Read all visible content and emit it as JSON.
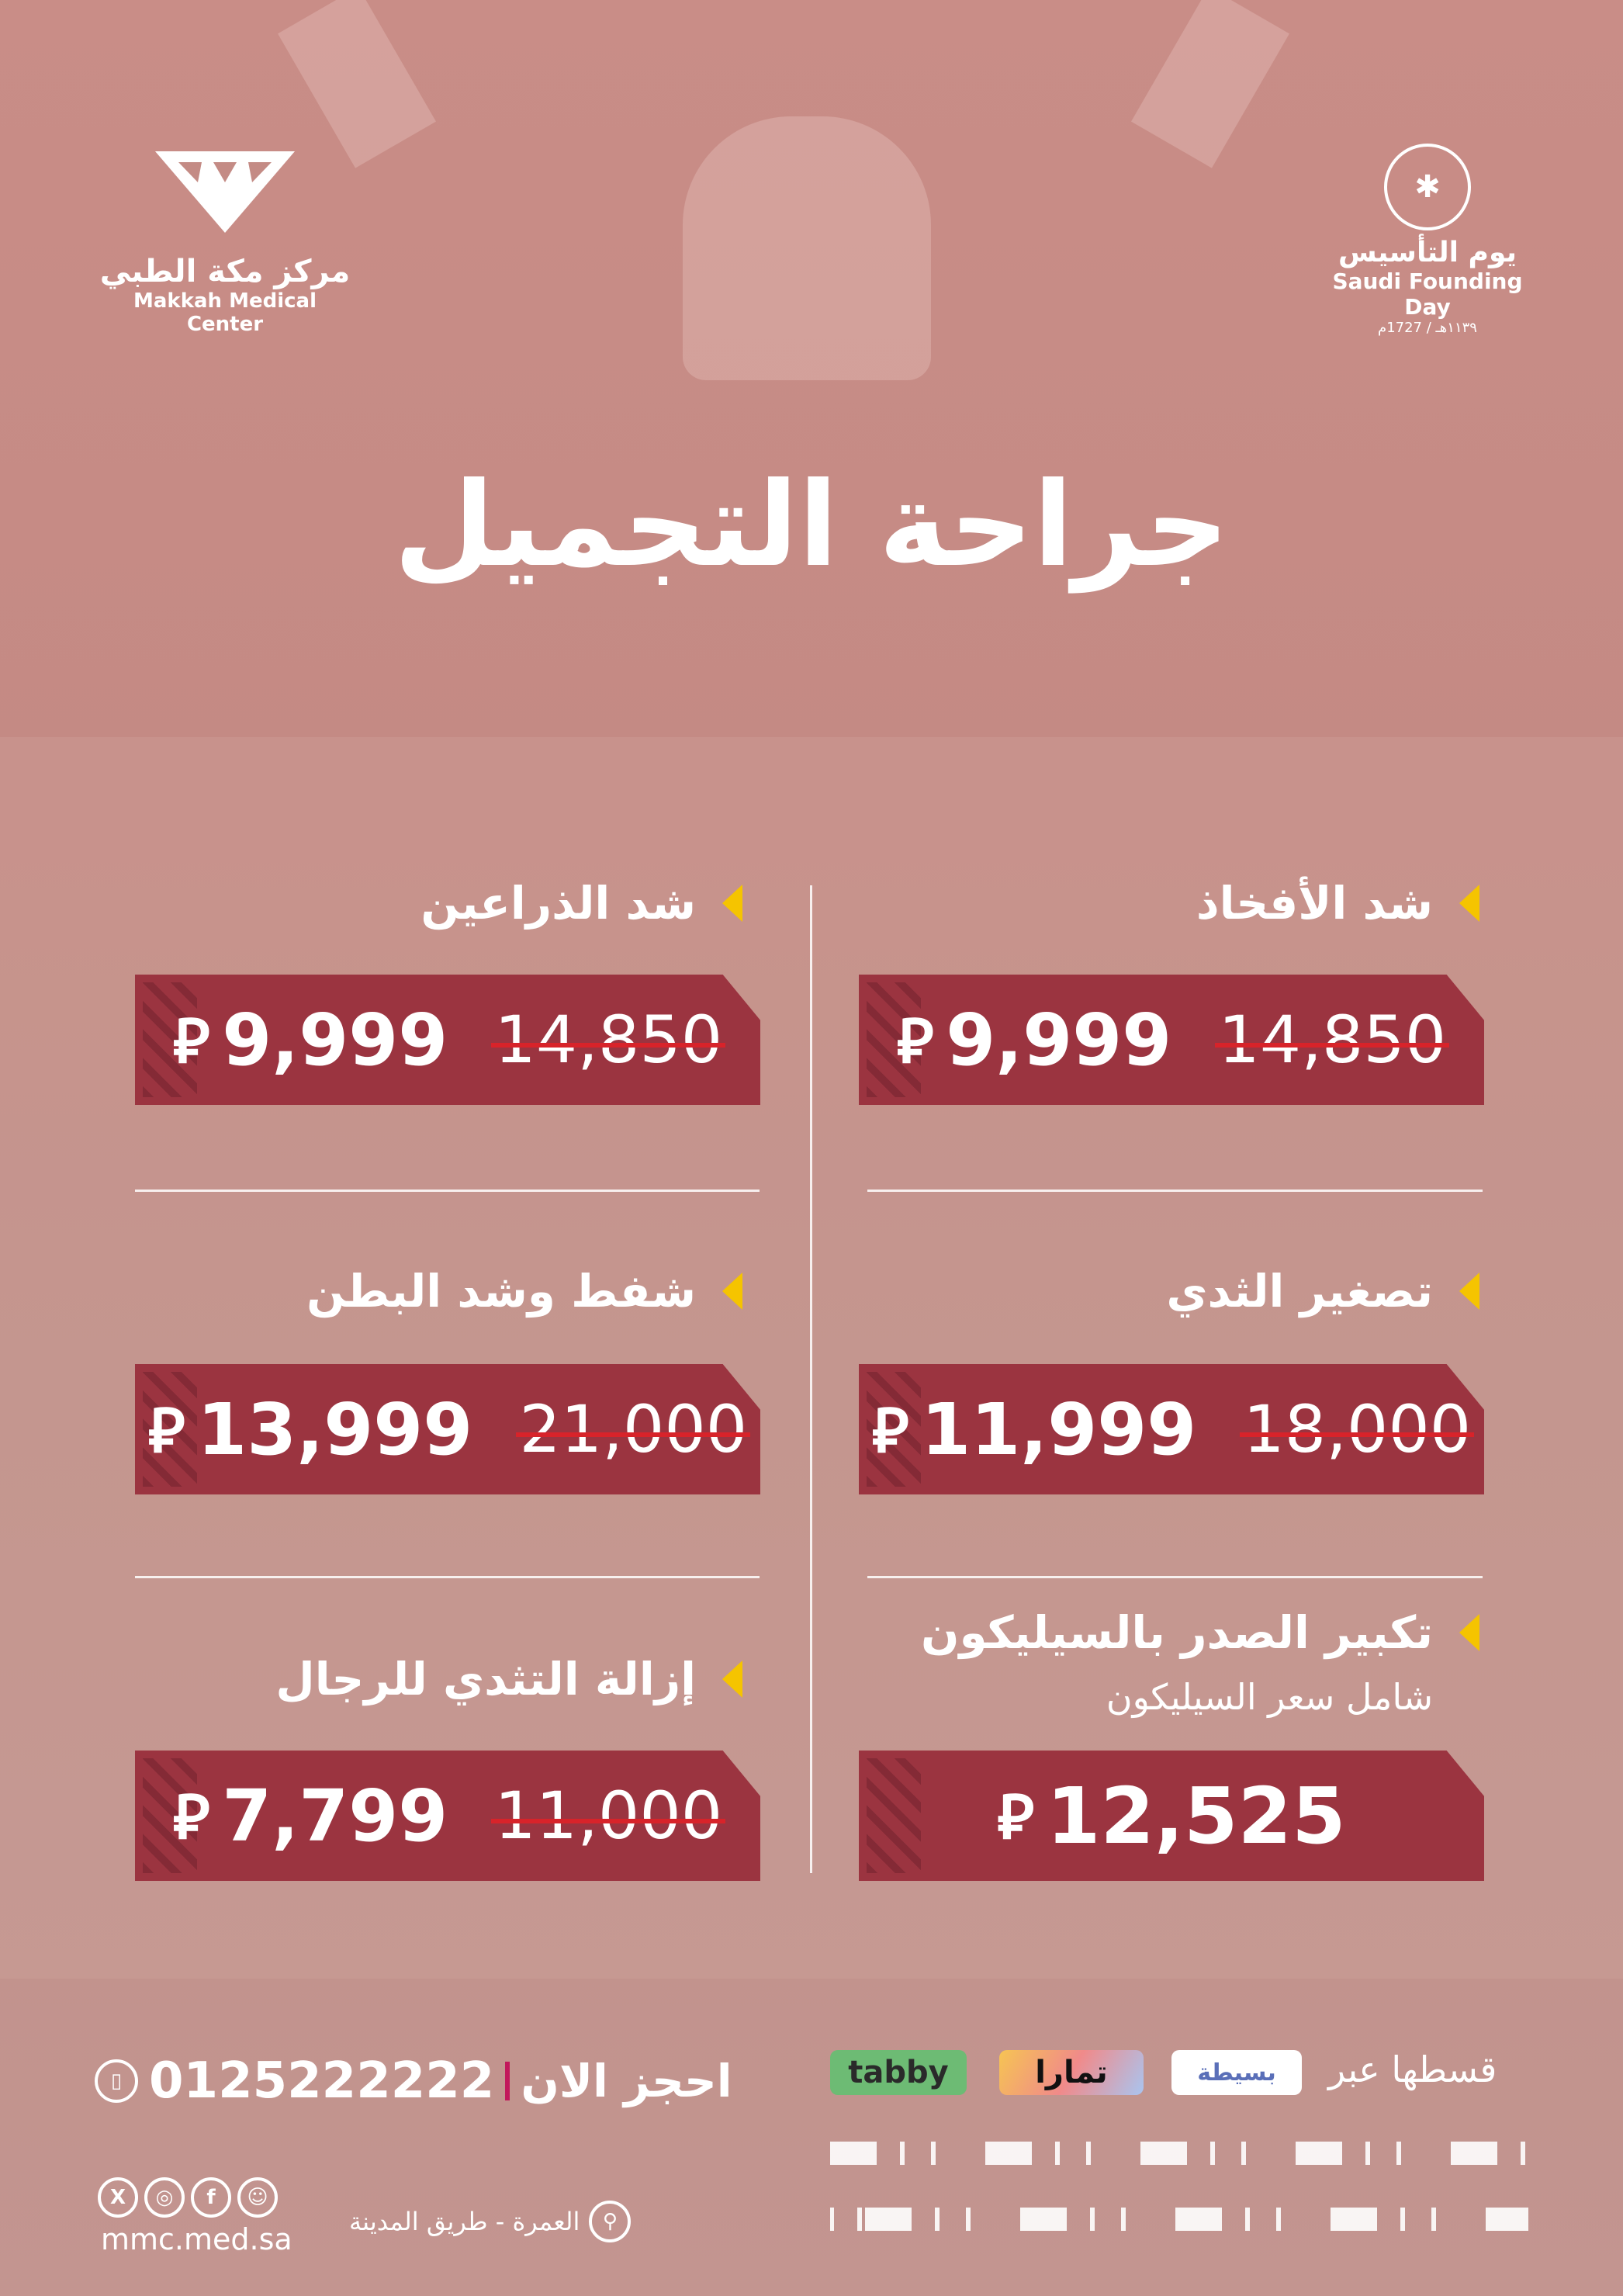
{
  "colors": {
    "background": "#c48b85",
    "price_box": "#9b3440",
    "bullet": "#f5c400",
    "strike": "#d8232a"
  },
  "logos": {
    "left": {
      "arabic": "مركز مكة الطبي",
      "english": "Makkah Medical Center"
    },
    "right": {
      "arabic": "يوم التأسيس",
      "english": "Saudi Founding Day",
      "dates": "١١٣٩هـ / 1727م"
    }
  },
  "title": "جراحة التجميل",
  "currency_symbol": "⃁",
  "items": [
    {
      "name": "شد الأفخاذ",
      "old_price": "14,850",
      "new_price": "9,999"
    },
    {
      "name": "شد الذراعين",
      "old_price": "14,850",
      "new_price": "9,999"
    },
    {
      "name": "تصغير الثدي",
      "old_price": "18,000",
      "new_price": "11,999"
    },
    {
      "name": "شفط وشد البطن",
      "old_price": "21,000",
      "new_price": "13,999"
    },
    {
      "name": "تكبير الصدر بالسيليكون",
      "subtitle": "شامل سعر السيليكون",
      "new_price": "12,525"
    },
    {
      "name": "إزالة التثدي للرجال",
      "old_price": "11,000",
      "new_price": "7,799"
    }
  ],
  "booking": {
    "label": "احجز الان",
    "phone": "0125222222",
    "icon": "phone-icon"
  },
  "installments": {
    "label": "قسطها عبر",
    "providers": [
      "tabby",
      "تمارا",
      "بسيطة"
    ]
  },
  "social": {
    "icons": [
      "x-icon",
      "instagram-icon",
      "facebook-icon",
      "snapchat-icon"
    ],
    "website": "mmc.med.sa"
  },
  "location": {
    "text": "العمرة - طريق المدينة",
    "icon": "location-pin-icon"
  }
}
